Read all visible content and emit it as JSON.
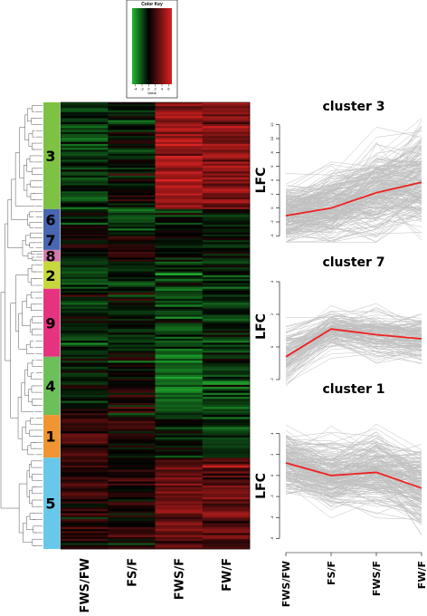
{
  "chart_data": [
    {
      "type": "heatmap",
      "color_key": {
        "title": "Color Key",
        "axis_label": "Value",
        "ticks": [
          -4,
          -2,
          0,
          2,
          4,
          6
        ],
        "range": [
          -5,
          7
        ],
        "low_color": "#22bb33",
        "mid_color": "#000000",
        "high_color": "#dd2222"
      },
      "columns": [
        "FWS/FW",
        "FS/F",
        "FWS/F",
        "FW/F"
      ],
      "clusters": [
        {
          "label": "3",
          "color": "#7dc242",
          "weight": 110,
          "means": [
            -1.2,
            -0.4,
            3.5,
            2.8
          ]
        },
        {
          "label": "6",
          "color": "#4866b1",
          "weight": 22,
          "means": [
            -0.6,
            -1.8,
            -0.8,
            -0.6
          ]
        },
        {
          "label": "7",
          "color": "#4866b1",
          "weight": 20,
          "means": [
            0.2,
            0.6,
            -0.4,
            -0.3
          ]
        },
        {
          "label": "8",
          "color": "#d678a8",
          "weight": 12,
          "means": [
            0.3,
            0.8,
            0.1,
            -0.2
          ]
        },
        {
          "label": "2",
          "color": "#c6d83b",
          "weight": 28,
          "means": [
            -1.6,
            -0.6,
            -1.4,
            -0.8
          ]
        },
        {
          "label": "9",
          "color": "#e6337f",
          "weight": 70,
          "means": [
            -0.8,
            -0.5,
            -1.8,
            -1.0
          ]
        },
        {
          "label": "4",
          "color": "#6cbf59",
          "weight": 60,
          "means": [
            -0.6,
            0.2,
            -2.4,
            -1.4
          ]
        },
        {
          "label": "1",
          "color": "#f19532",
          "weight": 44,
          "means": [
            1.4,
            0.2,
            -0.3,
            -1.2
          ]
        },
        {
          "label": "5",
          "color": "#69c8ea",
          "weight": 94,
          "means": [
            0.8,
            0.3,
            2.4,
            1.8
          ]
        }
      ]
    },
    {
      "type": "line",
      "title": "cluster 3",
      "ylabel": "LFC",
      "x": [
        "FWS/FW",
        "FS/F",
        "FWS/F",
        "FW/F"
      ],
      "ylim": [
        -5,
        13
      ],
      "yticks": [
        -4,
        -2,
        0,
        2,
        4,
        6,
        8,
        10,
        12
      ],
      "mean": [
        -1.1,
        0.0,
        2.2,
        3.7
      ],
      "profile_color": "#c0c0c0",
      "mean_color": "#ee2222"
    },
    {
      "type": "line",
      "title": "cluster 7",
      "ylabel": "LFC",
      "x": [
        "FWS/FW",
        "FS/F",
        "FWS/F",
        "FW/F"
      ],
      "ylim": [
        -2.5,
        5
      ],
      "yticks": [
        -2,
        0,
        2,
        4
      ],
      "mean": [
        -0.6,
        1.1,
        0.75,
        0.5
      ],
      "profile_color": "#c0c0c0",
      "mean_color": "#ee2222"
    },
    {
      "type": "line",
      "title": "cluster 1",
      "ylabel": "LFC",
      "x": [
        "FWS/FW",
        "FS/F",
        "FWS/F",
        "FW/F"
      ],
      "ylim": [
        -7,
        5
      ],
      "yticks": [
        -6,
        -4,
        -2,
        0,
        2,
        4
      ],
      "mean": [
        1.2,
        0.0,
        0.3,
        -1.2
      ],
      "profile_color": "#c0c0c0",
      "mean_color": "#ee2222"
    }
  ]
}
